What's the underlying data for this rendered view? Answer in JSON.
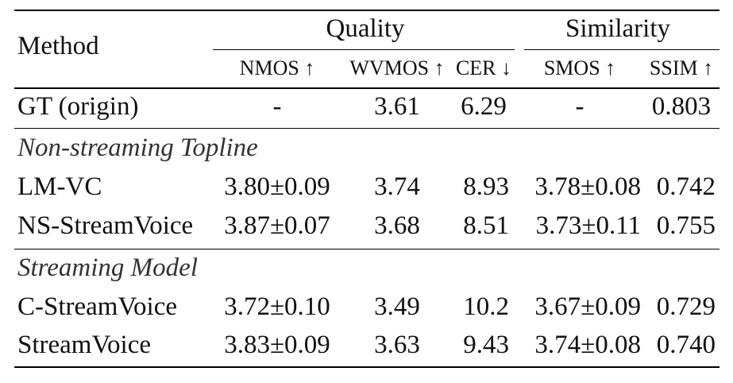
{
  "header": {
    "method": "Method",
    "group_quality": "Quality",
    "group_similarity": "Similarity",
    "columns": [
      "NMOS ↑",
      "WVMOS ↑",
      "CER ↓",
      "SMOS ↑",
      "SSIM ↑"
    ]
  },
  "sections": [
    {
      "title": "",
      "rows": [
        {
          "method": "GT (origin)",
          "nmos": "-",
          "wvmos": "3.61",
          "cer": "6.29",
          "smos": "-",
          "ssim": "0.803"
        }
      ]
    },
    {
      "title": "Non-streaming Topline",
      "rows": [
        {
          "method": "LM-VC",
          "nmos": "3.80±0.09",
          "wvmos": "3.74",
          "cer": "8.93",
          "smos": "3.78±0.08",
          "ssim": "0.742"
        },
        {
          "method": "NS-StreamVoice",
          "nmos": "3.87±0.07",
          "wvmos": "3.68",
          "cer": "8.51",
          "smos": "3.73±0.11",
          "ssim": "0.755"
        }
      ]
    },
    {
      "title": "Streaming Model",
      "rows": [
        {
          "method": "C-StreamVoice",
          "nmos": "3.72±0.10",
          "wvmos": "3.49",
          "cer": "10.2",
          "smos": "3.67±0.09",
          "ssim": "0.729"
        },
        {
          "method": "StreamVoice",
          "nmos": "3.83±0.09",
          "wvmos": "3.63",
          "cer": "9.43",
          "smos": "3.74±0.08",
          "ssim": "0.740"
        }
      ]
    }
  ]
}
